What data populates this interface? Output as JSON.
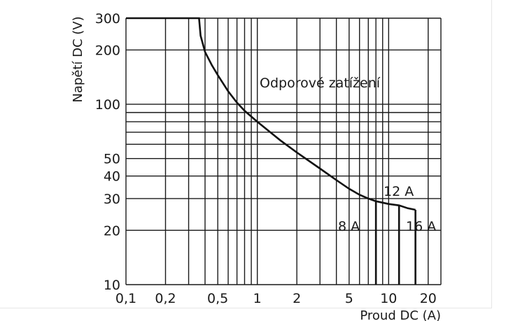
{
  "chart_data": {
    "type": "line",
    "title": "",
    "xlabel": "Proud DC (A)",
    "ylabel": "Napětí DC (V)",
    "x_scale": "log",
    "y_scale": "log",
    "xlim": [
      0.1,
      25
    ],
    "ylim": [
      10,
      300
    ],
    "grid": true,
    "x_tick_labels": [
      "0,1",
      "0,2",
      "0,5",
      "1",
      "2",
      "5",
      "10",
      "20"
    ],
    "x_tick_values": [
      0.1,
      0.2,
      0.5,
      1,
      2,
      5,
      10,
      20
    ],
    "y_tick_labels": [
      "10",
      "20",
      "30",
      "40",
      "50",
      "100",
      "200",
      "300"
    ],
    "y_tick_values": [
      10,
      20,
      30,
      40,
      50,
      100,
      200,
      300
    ],
    "x_grid_values": [
      0.1,
      0.2,
      0.3,
      0.4,
      0.5,
      0.6,
      0.7,
      0.8,
      0.9,
      1,
      2,
      3,
      4,
      5,
      6,
      7,
      8,
      9,
      10,
      20,
      25
    ],
    "y_grid_values": [
      10,
      20,
      30,
      40,
      50,
      60,
      70,
      80,
      90,
      100,
      200,
      300
    ],
    "series": [
      {
        "name": "Odporové zatížení",
        "x": [
          0.1,
          0.36,
          0.37,
          0.4,
          0.45,
          0.5,
          0.6,
          0.7,
          0.8,
          1,
          1.5,
          2,
          3,
          4,
          5,
          6,
          7,
          8,
          10,
          12,
          14,
          16
        ],
        "y": [
          300,
          300,
          240,
          195,
          165,
          145,
          118,
          102,
          92,
          80,
          63,
          54,
          44,
          38,
          34,
          31.5,
          30,
          29,
          28,
          27.5,
          26.5,
          26
        ]
      }
    ],
    "current_limits": [
      {
        "label": "8 A",
        "x": 8,
        "y_top": 29
      },
      {
        "label": "12 A",
        "x": 12,
        "y_top": 27.5
      },
      {
        "label": "16 A",
        "x": 16,
        "y_top": 26
      }
    ],
    "annotations": [
      {
        "text": "Odporové zatížení"
      },
      {
        "text": "12 A"
      },
      {
        "text": "8 A"
      },
      {
        "text": "16 A"
      }
    ]
  }
}
